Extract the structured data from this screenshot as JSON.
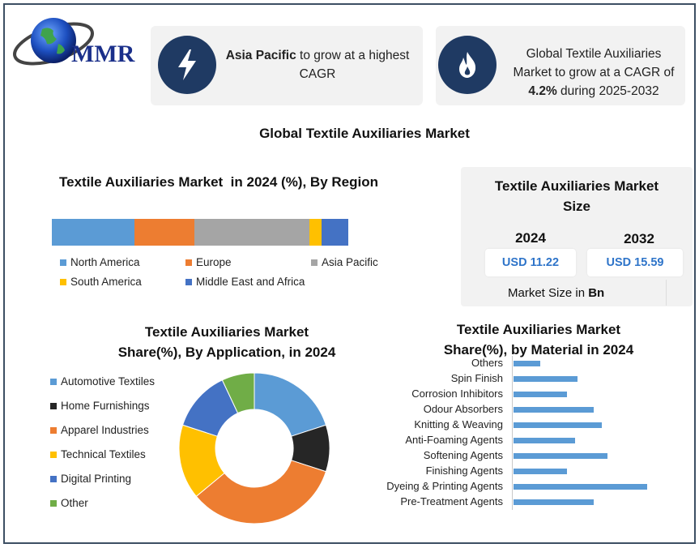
{
  "logo": {
    "text": "MMR"
  },
  "cards": {
    "card1": {
      "bold": "Asia Pacific",
      "rest_line1": " to grow at a highest",
      "line2": "CAGR",
      "icon": "lightning-icon"
    },
    "card2": {
      "line1": "Global Textile Auxiliaries",
      "line2": "Market to grow at a CAGR of",
      "bold": "4.2%",
      "line3_rest": " during 2025-2032",
      "icon": "flame-icon"
    }
  },
  "main_title": "Global Textile Auxiliaries Market",
  "colors": {
    "accent_dark": "#1f3a63",
    "bar_blue": "#5b9bd5",
    "size_blue": "#2e74c9",
    "card_bg": "#f2f2f2"
  },
  "chart_data": [
    {
      "type": "bar",
      "stacked": true,
      "orientation": "horizontal",
      "title": "Textile Auxiliaries Market  in 2024 (%), By Region",
      "series": [
        {
          "name": "North America",
          "value": 28,
          "color": "#5b9bd5"
        },
        {
          "name": "Europe",
          "value": 20,
          "color": "#ed7d31"
        },
        {
          "name": "Asia Pacific",
          "value": 39,
          "color": "#a5a5a5"
        },
        {
          "name": "South America",
          "value": 4,
          "color": "#ffc000"
        },
        {
          "name": "Middle East and Africa",
          "value": 9,
          "color": "#4472c4"
        }
      ],
      "legend_position": "bottom"
    },
    {
      "type": "pie",
      "donut": true,
      "title_line1": "Textile Auxiliaries Market",
      "title_line2": "Share(%), By Application, in 2024",
      "slices": [
        {
          "name": "Automotive Textiles",
          "value": 20,
          "color": "#5b9bd5"
        },
        {
          "name": "Home Furnishings",
          "value": 10,
          "color": "#262626"
        },
        {
          "name": "Apparel Industries",
          "value": 34,
          "color": "#ed7d31"
        },
        {
          "name": "Technical Textiles",
          "value": 16,
          "color": "#ffc000"
        },
        {
          "name": "Digital Printing",
          "value": 13,
          "color": "#4472c4"
        },
        {
          "name": "Other",
          "value": 7,
          "color": "#70ad47"
        }
      ],
      "legend_position": "left"
    },
    {
      "type": "bar",
      "orientation": "horizontal",
      "title_line1": "Textile Auxiliaries Market",
      "title_line2": "Share(%), by Material in 2024",
      "categories": [
        "Others",
        "Spin Finish",
        "Corrosion Inhibitors",
        "Odour Absorbers",
        "Knitting & Weaving",
        "Anti-Foaming Agents",
        "Softening Agents",
        "Finishing Agents",
        "Dyeing & Printing Agents",
        "Pre-Treatment Agents"
      ],
      "values": [
        5,
        12,
        10,
        15,
        16.5,
        11.5,
        17.5,
        10,
        25,
        15
      ],
      "xlim": [
        0,
        25
      ],
      "color": "#5b9bd5"
    }
  ],
  "market_size": {
    "title_line1": "Textile Auxiliaries Market",
    "title_line2": "Size",
    "years": [
      {
        "year": "2024",
        "value": "USD 11.22"
      },
      {
        "year": "2032",
        "value": "USD 15.59"
      }
    ],
    "unit_prefix": "Market Size in ",
    "unit_bold": "Bn"
  }
}
